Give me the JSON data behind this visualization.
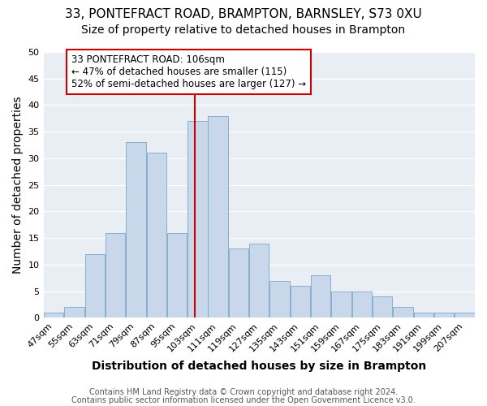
{
  "title1": "33, PONTEFRACT ROAD, BRAMPTON, BARNSLEY, S73 0XU",
  "title2": "Size of property relative to detached houses in Brampton",
  "xlabel": "Distribution of detached houses by size in Brampton",
  "ylabel": "Number of detached properties",
  "footer1": "Contains HM Land Registry data © Crown copyright and database right 2024.",
  "footer2": "Contains public sector information licensed under the Open Government Licence v3.0.",
  "bin_labels": [
    "47sqm",
    "55sqm",
    "63sqm",
    "71sqm",
    "79sqm",
    "87sqm",
    "95sqm",
    "103sqm",
    "111sqm",
    "119sqm",
    "127sqm",
    "135sqm",
    "143sqm",
    "151sqm",
    "159sqm",
    "167sqm",
    "175sqm",
    "183sqm",
    "191sqm",
    "199sqm",
    "207sqm"
  ],
  "bar_heights": [
    1,
    2,
    12,
    16,
    33,
    31,
    16,
    37,
    38,
    13,
    14,
    7,
    6,
    8,
    5,
    5,
    4,
    2,
    1,
    1,
    1
  ],
  "bin_edges": [
    47,
    55,
    63,
    71,
    79,
    87,
    95,
    103,
    111,
    119,
    127,
    135,
    143,
    151,
    159,
    167,
    175,
    183,
    191,
    199,
    207,
    215
  ],
  "bar_color": "#c8d8ea",
  "bar_edge_color": "#7aa8c8",
  "vline_x": 106,
  "vline_color": "#cc0000",
  "annotation_text": "33 PONTEFRACT ROAD: 106sqm\n← 47% of detached houses are smaller (115)\n52% of semi-detached houses are larger (127) →",
  "annotation_box_edge_color": "#cc0000",
  "annotation_box_face_color": "#ffffff",
  "ylim": [
    0,
    50
  ],
  "yticks": [
    0,
    5,
    10,
    15,
    20,
    25,
    30,
    35,
    40,
    45,
    50
  ],
  "bg_color": "#ffffff",
  "plot_bg_color": "#e8eef4",
  "grid_color": "#ffffff",
  "title1_fontsize": 11,
  "title2_fontsize": 10,
  "axis_label_fontsize": 10,
  "tick_fontsize": 8,
  "footer_fontsize": 7,
  "annotation_fontsize": 8.5
}
